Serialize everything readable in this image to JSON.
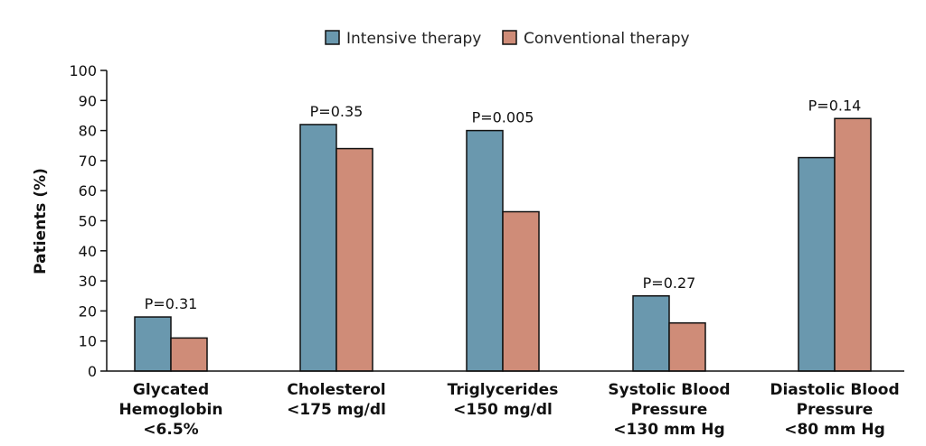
{
  "chart_data": {
    "type": "bar",
    "ylabel": "Patients (%)",
    "ylim": [
      0,
      100
    ],
    "yticks": [
      0,
      10,
      20,
      30,
      40,
      50,
      60,
      70,
      80,
      90,
      100
    ],
    "grid": false,
    "legend_position": "top-center",
    "categories": [
      [
        "Glycated",
        "Hemoglobin",
        "<6.5%"
      ],
      [
        "Cholesterol",
        "<175 mg/dl"
      ],
      [
        "Triglycerides",
        "<150 mg/dl"
      ],
      [
        "Systolic Blood",
        "Pressure",
        "<130 mm Hg"
      ],
      [
        "Diastolic Blood",
        "Pressure",
        "<80 mm Hg"
      ]
    ],
    "series": [
      {
        "name": "Intensive therapy",
        "color": "#6a98ae",
        "values": [
          18,
          82,
          80,
          25,
          71
        ]
      },
      {
        "name": "Conventional therapy",
        "color": "#cf8c78",
        "values": [
          11,
          74,
          53,
          16,
          84
        ]
      }
    ],
    "annotations": [
      "P=0.31",
      "P=0.35",
      "P=0.005",
      "P=0.27",
      "P=0.14"
    ]
  }
}
